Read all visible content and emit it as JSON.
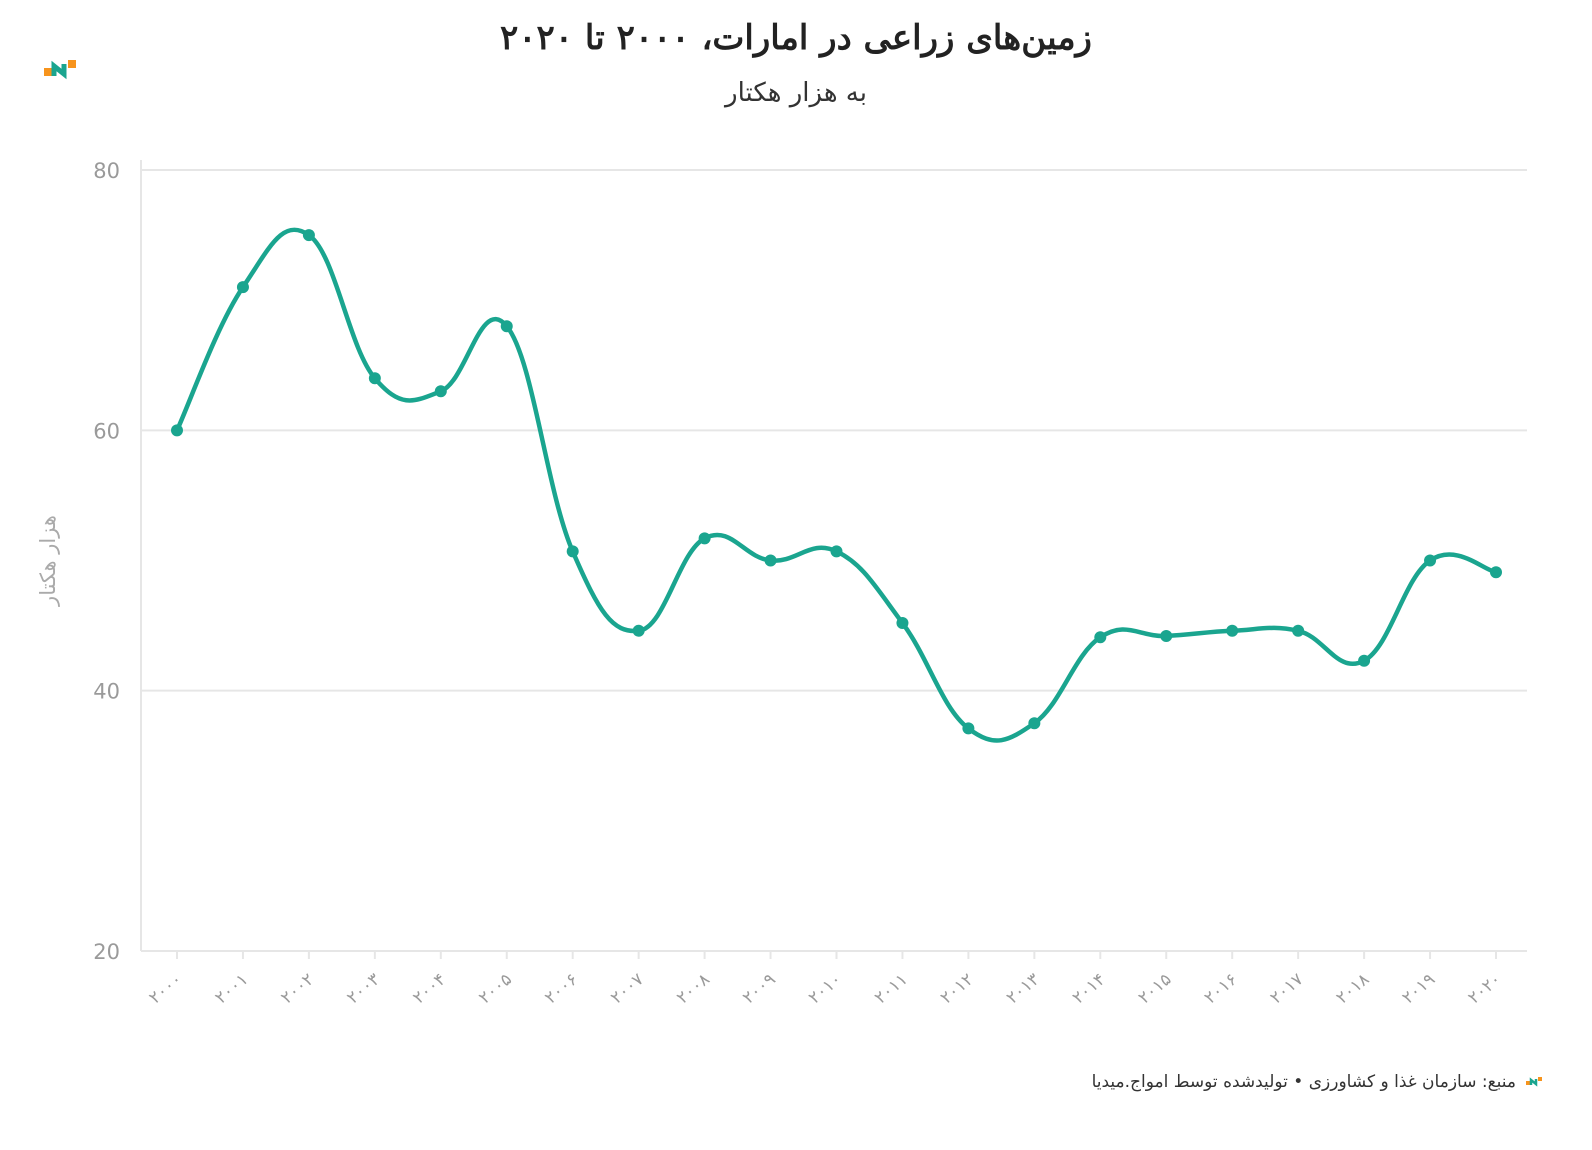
{
  "header": {
    "title": "زمین‌های زراعی در امارات، ۲۰۰۰ تا ۲۰۲۰",
    "subtitle": "به هزار هکتار"
  },
  "footer": {
    "source": "منبع: سازمان غذا و کشاورزی • تولیدشده توسط امواج.میدیا"
  },
  "colors": {
    "line": "#1aa58f",
    "logo_orange": "#f7941d",
    "logo_green": "#1aa58f",
    "grid": "#e6e6e6",
    "tick_text": "#9a9a9a"
  },
  "chart_data": {
    "type": "line",
    "ylabel": "هزار هکتار",
    "ylim": [
      20,
      80
    ],
    "yticks": [
      20,
      40,
      60,
      80
    ],
    "categories": [
      "۲۰۰۰",
      "۲۰۰۱",
      "۲۰۰۲",
      "۲۰۰۳",
      "۲۰۰۴",
      "۲۰۰۵",
      "۲۰۰۶",
      "۲۰۰۷",
      "۲۰۰۸",
      "۲۰۰۹",
      "۲۰۱۰",
      "۲۰۱۱",
      "۲۰۱۲",
      "۲۰۱۳",
      "۲۰۱۴",
      "۲۰۱۵",
      "۲۰۱۶",
      "۲۰۱۷",
      "۲۰۱۸",
      "۲۰۱۹",
      "۲۰۲۰"
    ],
    "values": [
      60,
      71,
      75,
      64,
      63,
      68,
      50.7,
      44.6,
      51.7,
      50,
      50.7,
      45.2,
      37.1,
      37.5,
      44.1,
      44.2,
      44.6,
      44.6,
      42.3,
      50,
      49.1
    ],
    "grid": true,
    "legend": "none"
  }
}
